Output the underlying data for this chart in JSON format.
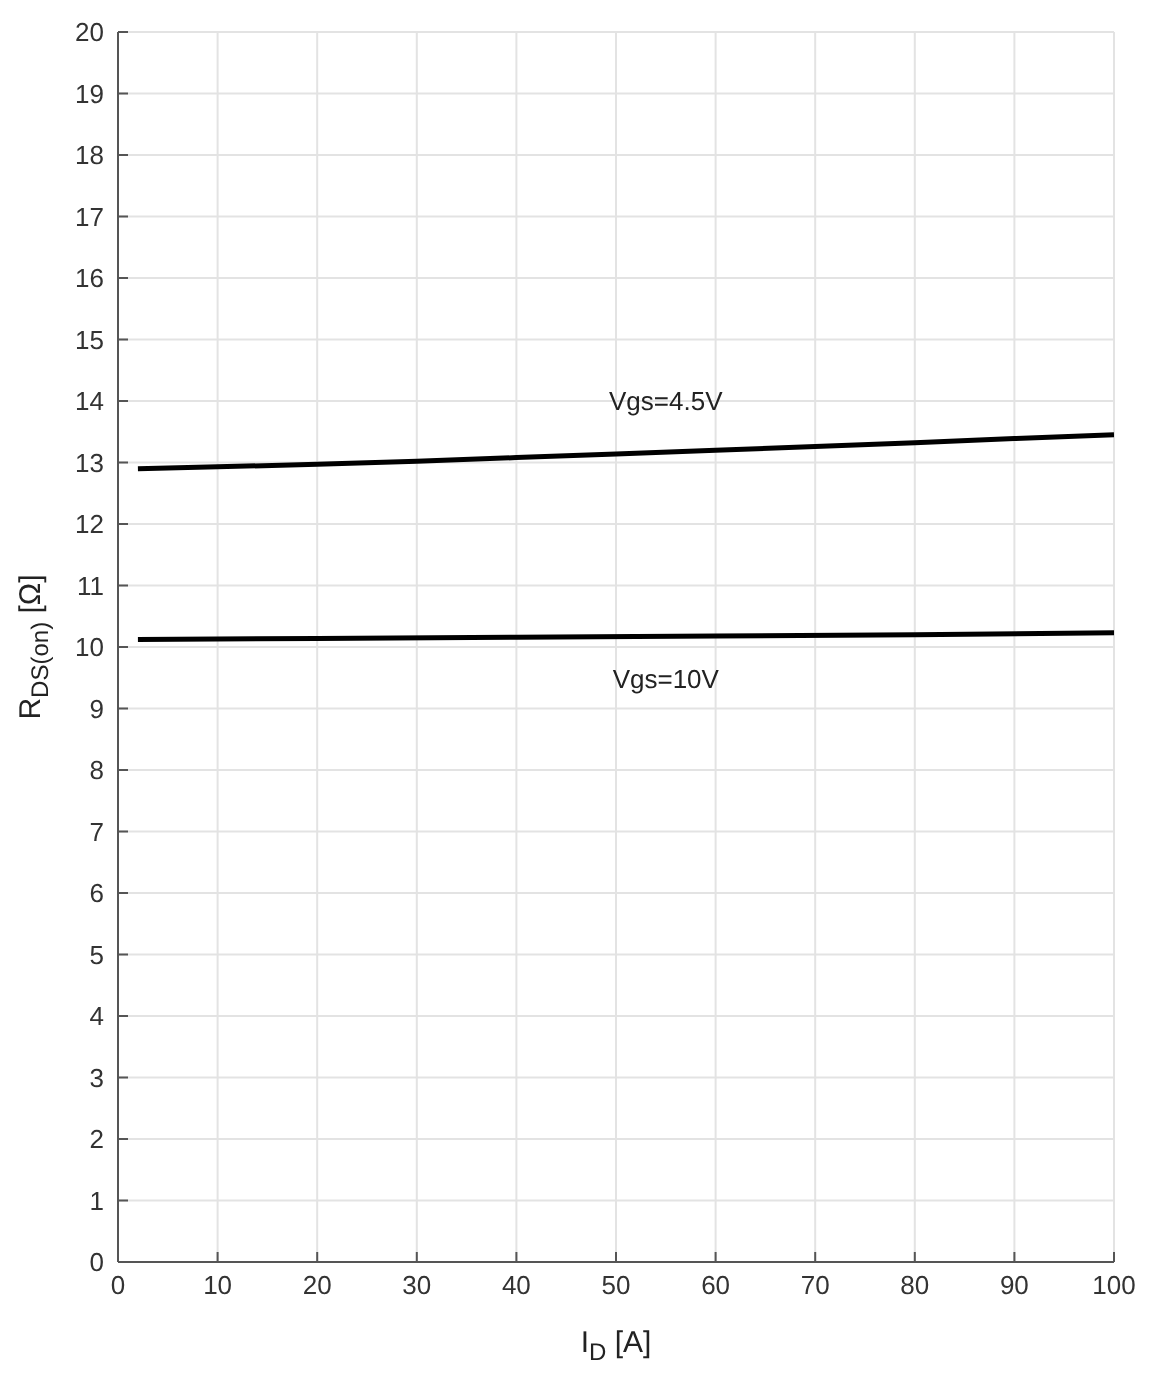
{
  "chart_data": {
    "type": "line",
    "xlabel": "I$_{D}$ [A]",
    "ylabel": "R$_{DS(on)}$ [Ω]",
    "xlim": [
      0,
      100
    ],
    "xticks": [
      0,
      10,
      20,
      30,
      40,
      50,
      60,
      70,
      80,
      90,
      100
    ],
    "ylim": [
      0,
      20
    ],
    "yticks": [
      0,
      1,
      2,
      3,
      4,
      5,
      6,
      7,
      8,
      9,
      10,
      11,
      12,
      13,
      14,
      15,
      16,
      17,
      18,
      19,
      20
    ],
    "grid": true,
    "marker": "none",
    "line_style": "solid",
    "legend": false,
    "series": [
      {
        "name": "Vgs=4.5V",
        "color": "#000000",
        "x": [
          2,
          10,
          20,
          30,
          40,
          50,
          60,
          70,
          80,
          90,
          100
        ],
        "values": [
          12.9,
          12.93,
          12.97,
          13.02,
          13.08,
          13.14,
          13.2,
          13.26,
          13.32,
          13.39,
          13.45
        ]
      },
      {
        "name": "Vgs=10V",
        "color": "#000000",
        "x": [
          2,
          20,
          40,
          60,
          80,
          100
        ],
        "values": [
          10.12,
          10.14,
          10.16,
          10.18,
          10.2,
          10.23
        ]
      }
    ]
  }
}
